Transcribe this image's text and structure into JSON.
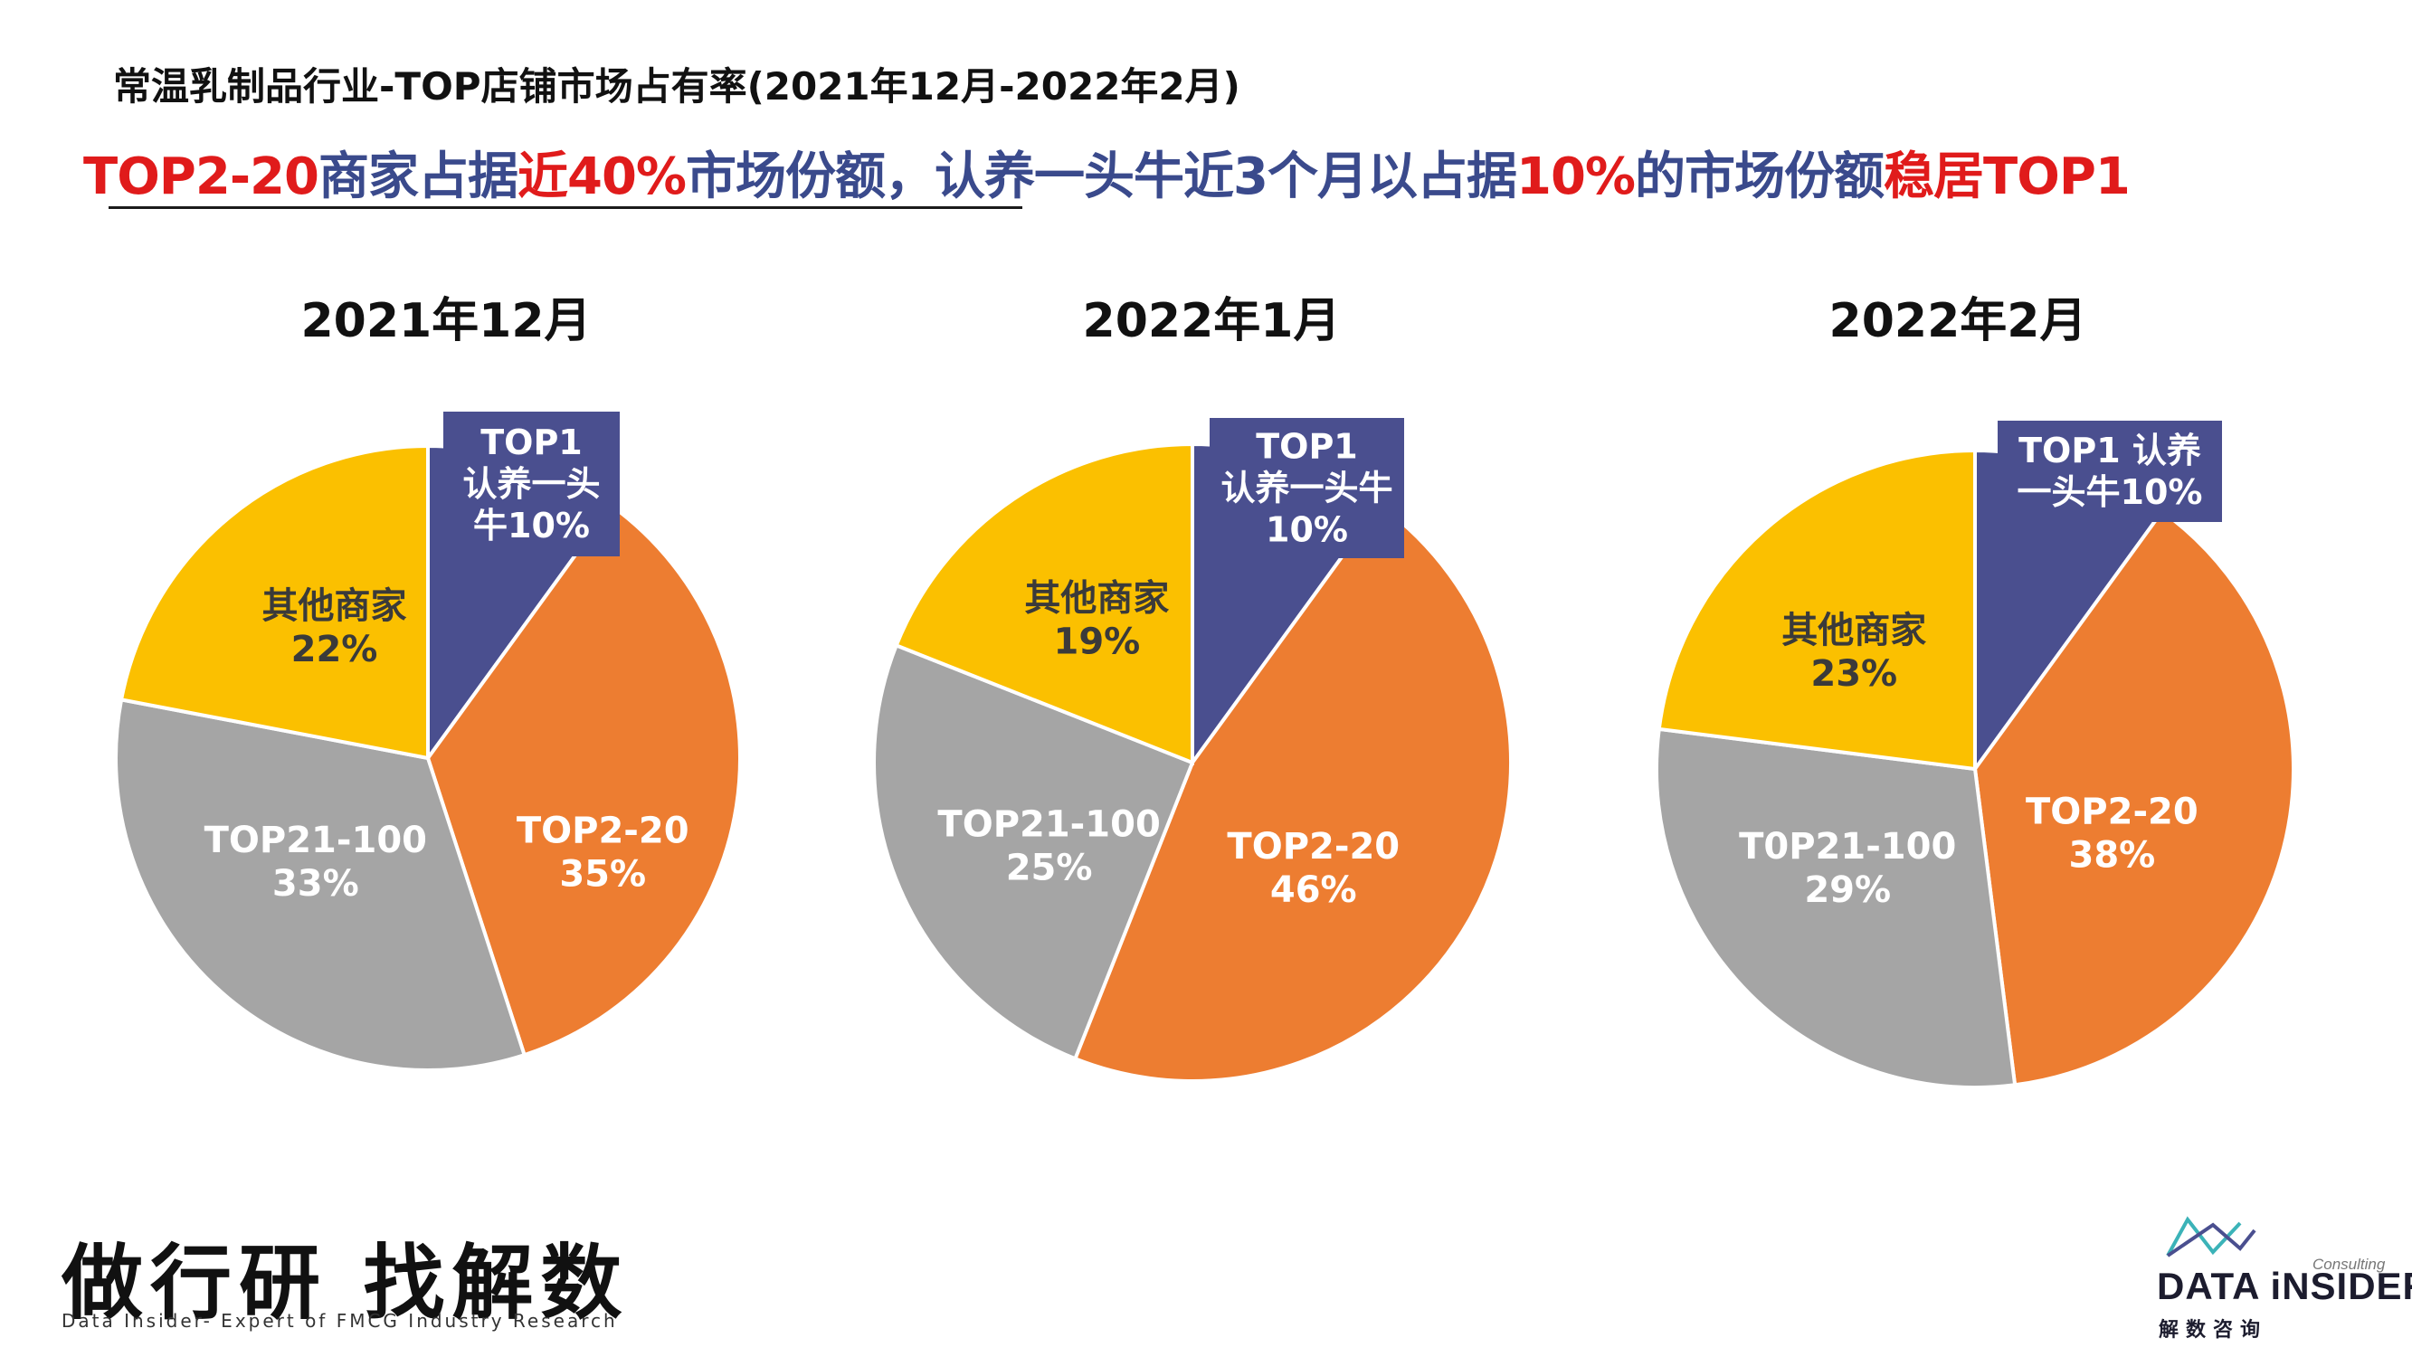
{
  "header": {
    "title": "常温乳制品行业-TOP店铺市场占有率(2021年12月-2022年2月)",
    "subtitle_parts": [
      {
        "text": "TOP2-20",
        "color": "#e01b1b"
      },
      {
        "text": "商家占据",
        "color": "#3a4a8c"
      },
      {
        "text": "近40%",
        "color": "#e01b1b"
      },
      {
        "text": "市场份额，认养一头牛近3个月以占据",
        "color": "#3a4a8c"
      },
      {
        "text": "10%",
        "color": "#e01b1b"
      },
      {
        "text": "的市场份额",
        "color": "#3a4a8c"
      },
      {
        "text": "稳居TOP1",
        "color": "#e01b1b"
      }
    ]
  },
  "colors": {
    "top1": "#4a4f8f",
    "top2_20": "#ed7d31",
    "top21_100": "#a5a5a5",
    "others": "#fbc000",
    "label_text": "#ffffff",
    "others_label_text": "#3a3a3a"
  },
  "chart_data": [
    {
      "type": "pie",
      "title": "2021年12月",
      "slices": [
        {
          "label": [
            "TOP1",
            "认养一头",
            "牛10%"
          ],
          "value": 10,
          "key": "top1"
        },
        {
          "label": [
            "TOP2-20",
            "35%"
          ],
          "value": 35,
          "key": "top2_20"
        },
        {
          "label": [
            "TOP21-100",
            "33%"
          ],
          "value": 33,
          "key": "top21_100"
        },
        {
          "label": [
            "其他商家",
            "22%"
          ],
          "value": 22,
          "key": "others"
        }
      ]
    },
    {
      "type": "pie",
      "title": "2022年1月",
      "slices": [
        {
          "label": [
            "TOP1",
            "认养一头牛",
            "10%"
          ],
          "value": 10,
          "key": "top1"
        },
        {
          "label": [
            "TOP2-20",
            "46%"
          ],
          "value": 46,
          "key": "top2_20"
        },
        {
          "label": [
            "TOP21-100",
            "25%"
          ],
          "value": 25,
          "key": "top21_100"
        },
        {
          "label": [
            "其他商家",
            "19%"
          ],
          "value": 19,
          "key": "others"
        }
      ]
    },
    {
      "type": "pie",
      "title": "2022年2月",
      "slices": [
        {
          "label": [
            "TOP1 认养",
            "一头牛10%"
          ],
          "value": 10,
          "key": "top1"
        },
        {
          "label": [
            "TOP2-20",
            "38%"
          ],
          "value": 38,
          "key": "top2_20"
        },
        {
          "label": [
            "T0P21-100",
            "29%"
          ],
          "value": 29,
          "key": "top21_100"
        },
        {
          "label": [
            "其他商家",
            "23%"
          ],
          "value": 23,
          "key": "others"
        }
      ]
    }
  ],
  "footer": {
    "slogan": "做行研 找解数",
    "slogan_sub": "Data Insider- Expert of FMCG Industry Research",
    "logo_consulting": "Consulting",
    "logo_name": "DATA iNSIDER",
    "logo_cn": "解数咨询"
  }
}
